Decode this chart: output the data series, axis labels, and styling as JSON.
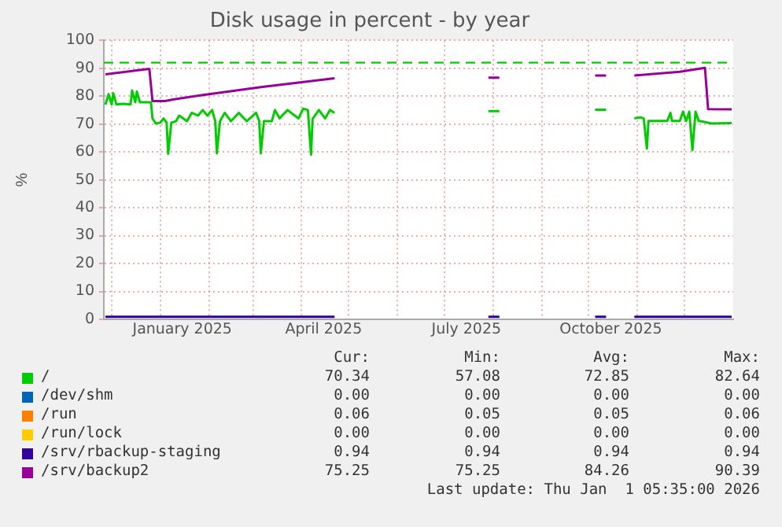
{
  "chart_data": {
    "type": "line",
    "title": "Disk usage in percent - by year",
    "ylabel": "%",
    "xlim": [
      "2024-11-26",
      "2026-01-01"
    ],
    "xticks": [
      {
        "value": "2024-12-01",
        "label": null
      },
      {
        "value": "2025-01-01",
        "label": null
      },
      {
        "value": "2025-01-15",
        "label": "January 2025"
      },
      {
        "value": "2025-02-01",
        "label": null
      },
      {
        "value": "2025-03-01",
        "label": null
      },
      {
        "value": "2025-04-01",
        "label": null
      },
      {
        "value": "2025-04-15",
        "label": "April 2025"
      },
      {
        "value": "2025-05-01",
        "label": null
      },
      {
        "value": "2025-06-01",
        "label": null
      },
      {
        "value": "2025-07-01",
        "label": null
      },
      {
        "value": "2025-07-15",
        "label": "July 2025"
      },
      {
        "value": "2025-08-01",
        "label": null
      },
      {
        "value": "2025-09-01",
        "label": null
      },
      {
        "value": "2025-10-01",
        "label": null
      },
      {
        "value": "2025-10-15",
        "label": "October 2025"
      },
      {
        "value": "2025-11-01",
        "label": null
      },
      {
        "value": "2025-12-01",
        "label": null
      }
    ],
    "ylim": [
      0,
      100
    ],
    "yticks": [
      0,
      10,
      20,
      30,
      40,
      50,
      60,
      70,
      80,
      90,
      100
    ],
    "grid": true,
    "legend": "bottom",
    "marker": "none",
    "line_style": "solid",
    "ref_lines": [
      {
        "axis": "y",
        "value": 92,
        "color": "#00cc00",
        "line_style": "dashed"
      }
    ],
    "series": [
      {
        "name": "/",
        "color": "#00cc00",
        "x": [
          "2024-11-27",
          "2024-11-29",
          "2024-12-01",
          "2024-12-02",
          "2024-12-04",
          "2024-12-08",
          "2024-12-13",
          "2024-12-14",
          "2024-12-16",
          "2024-12-17",
          "2024-12-19",
          "2024-12-26",
          "2024-12-27",
          "2024-12-29",
          "2025-01-01",
          "2025-01-03",
          "2025-01-05",
          "2025-01-06",
          "2025-01-08",
          "2025-01-11",
          "2025-01-13",
          "2025-01-18",
          "2025-01-21",
          "2025-01-25",
          "2025-01-28",
          "2025-01-31",
          "2025-02-03",
          "2025-02-05",
          "2025-02-06",
          "2025-02-08",
          "2025-02-11",
          "2025-02-15",
          "2025-02-20",
          "2025-02-25",
          "2025-03-03",
          "2025-03-05",
          "2025-03-06",
          "2025-03-08",
          "2025-03-13",
          "2025-03-15",
          "2025-03-18",
          "2025-03-23",
          "2025-03-30",
          "2025-04-02",
          "2025-04-05",
          "2025-04-07",
          "2025-04-08",
          "2025-04-12",
          "2025-04-16",
          "2025-04-19",
          "2025-04-22",
          "2025-06-01",
          "2025-07-29",
          "2025-08-05",
          "2025-09-01",
          "2025-10-05",
          "2025-10-12",
          "2025-10-20",
          "2025-10-30",
          "2025-11-03",
          "2025-11-05",
          "2025-11-07",
          "2025-11-08",
          "2025-11-20",
          "2025-11-22",
          "2025-11-23",
          "2025-11-28",
          "2025-11-30",
          "2025-12-02",
          "2025-12-04",
          "2025-12-06",
          "2025-12-08",
          "2025-12-10",
          "2025-12-13",
          "2025-12-18",
          "2025-12-31"
        ],
        "values": [
          76.9,
          80.7,
          77,
          81,
          77,
          77.2,
          77,
          82,
          77.8,
          81.6,
          77.8,
          77.8,
          72,
          70.2,
          70.5,
          72,
          70.5,
          59.3,
          70.5,
          71,
          73,
          71,
          74,
          73,
          75,
          73,
          75,
          71,
          59.5,
          71,
          74,
          71,
          74,
          71,
          74,
          71,
          59.5,
          71,
          71,
          75,
          72,
          75,
          72,
          75.5,
          75,
          59,
          71.8,
          75,
          72,
          75,
          74,
          null,
          74.6,
          74.6,
          null,
          75.1,
          75.1,
          null,
          72,
          72.4,
          72,
          61.2,
          71.1,
          71.1,
          74,
          71.1,
          71.1,
          74.4,
          71.1,
          74.4,
          60.6,
          74.4,
          71.1,
          70.8,
          70.2,
          70.34
        ]
      },
      {
        "name": "/dev/shm",
        "color": "#0066b3"
      },
      {
        "name": "/run",
        "color": "#ff8000"
      },
      {
        "name": "/run/lock",
        "color": "#ffcc00"
      },
      {
        "name": "/srv/rbackup-staging",
        "color": "#330099",
        "x": [
          "2024-11-27",
          "2025-04-22",
          "2025-06-01",
          "2025-07-29",
          "2025-08-05",
          "2025-09-01",
          "2025-10-05",
          "2025-10-12",
          "2025-10-20",
          "2025-10-30",
          "2025-12-31"
        ],
        "values": [
          0.94,
          0.94,
          null,
          0.94,
          0.94,
          null,
          0.94,
          0.94,
          null,
          0.94,
          0.94
        ]
      },
      {
        "name": "/srv/backup2",
        "color": "#990099",
        "x": [
          "2024-11-27",
          "2024-12-24",
          "2024-12-25",
          "2024-12-27",
          "2025-01-04",
          "2025-01-09",
          "2025-02-01",
          "2025-03-06",
          "2025-04-22",
          "2025-06-01",
          "2025-07-29",
          "2025-08-05",
          "2025-09-01",
          "2025-10-05",
          "2025-10-12",
          "2025-10-20",
          "2025-10-30",
          "2025-11-28",
          "2025-12-14",
          "2025-12-16",
          "2025-12-31"
        ],
        "values": [
          87.8,
          89.7,
          89.7,
          78.2,
          78.2,
          78.8,
          80.7,
          83.2,
          86.4,
          null,
          86.6,
          86.6,
          null,
          87.4,
          87.4,
          null,
          87.4,
          88.7,
          90.1,
          75.3,
          75.25
        ]
      }
    ],
    "annotations": [
      "Cur:",
      "Min:",
      "Avg:",
      "Max:",
      "70.34",
      "57.08",
      "72.85",
      "82.64",
      "0.00",
      "0.00",
      "0.00",
      "0.00",
      "0.06",
      "0.05",
      "0.05",
      "0.06",
      "0.00",
      "0.00",
      "0.00",
      "0.00",
      "0.94",
      "0.94",
      "0.94",
      "0.94",
      "75.25",
      "75.25",
      "84.26",
      "90.39",
      "Last update: Thu Jan  1 05:35:00 2026"
    ]
  }
}
